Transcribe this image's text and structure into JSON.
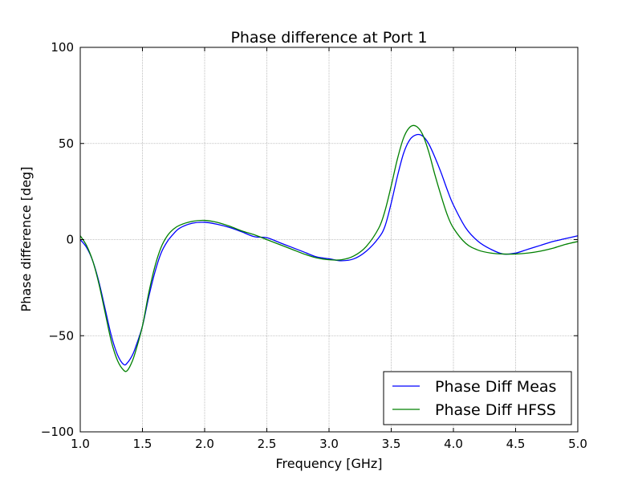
{
  "chart_data": {
    "type": "line",
    "title": "Phase difference at Port 1",
    "xlabel": "Frequency [GHz]",
    "ylabel": "Phase difference [deg]",
    "xlim": [
      1.0,
      5.0
    ],
    "ylim": [
      -100,
      100
    ],
    "xticks": [
      "1.0",
      "1.5",
      "2.0",
      "2.5",
      "3.0",
      "3.5",
      "4.0",
      "4.5",
      "5.0"
    ],
    "yticks": [
      "100",
      "50",
      "0",
      "−50",
      "−100"
    ],
    "grid": true,
    "legend": "lower-right",
    "series": [
      {
        "name": "Phase Diff Meas",
        "color": "#0000ff",
        "x": [
          1.0,
          1.05,
          1.1,
          1.15,
          1.2,
          1.25,
          1.3,
          1.35,
          1.38,
          1.42,
          1.45,
          1.5,
          1.55,
          1.6,
          1.65,
          1.7,
          1.75,
          1.8,
          1.9,
          2.0,
          2.1,
          2.2,
          2.3,
          2.4,
          2.5,
          2.6,
          2.7,
          2.8,
          2.9,
          3.0,
          3.1,
          3.2,
          3.3,
          3.4,
          3.45,
          3.5,
          3.55,
          3.6,
          3.65,
          3.7,
          3.75,
          3.8,
          3.85,
          3.9,
          3.95,
          4.0,
          4.1,
          4.2,
          4.3,
          4.4,
          4.5,
          4.6,
          4.7,
          4.8,
          4.9,
          5.0
        ],
        "y": [
          0,
          -4,
          -11,
          -22,
          -36,
          -50,
          -60,
          -65,
          -64,
          -60,
          -55,
          -45,
          -30,
          -17,
          -7,
          -1,
          3,
          6,
          8.5,
          9,
          8,
          6.3,
          4,
          1.5,
          1,
          -1.5,
          -4,
          -6.5,
          -9,
          -10,
          -11,
          -10,
          -6,
          1,
          7,
          19,
          33,
          45,
          52,
          54.5,
          54,
          50,
          43,
          35,
          26,
          18,
          6,
          -1,
          -5,
          -7.5,
          -7,
          -5,
          -3,
          -1,
          0.5,
          2
        ]
      },
      {
        "name": "Phase Diff HFSS",
        "color": "#008000",
        "x": [
          1.0,
          1.05,
          1.1,
          1.15,
          1.2,
          1.25,
          1.3,
          1.35,
          1.38,
          1.42,
          1.45,
          1.5,
          1.55,
          1.6,
          1.65,
          1.7,
          1.75,
          1.8,
          1.9,
          2.0,
          2.1,
          2.2,
          2.3,
          2.4,
          2.5,
          2.6,
          2.7,
          2.8,
          2.9,
          3.0,
          3.1,
          3.2,
          3.3,
          3.4,
          3.45,
          3.5,
          3.55,
          3.6,
          3.65,
          3.7,
          3.75,
          3.8,
          3.85,
          3.9,
          3.95,
          4.0,
          4.1,
          4.2,
          4.3,
          4.4,
          4.5,
          4.6,
          4.7,
          4.8,
          4.9,
          5.0
        ],
        "y": [
          2,
          -3,
          -11,
          -23,
          -38,
          -53,
          -63,
          -68,
          -68,
          -63,
          -57,
          -45,
          -28,
          -14,
          -4,
          2,
          5.5,
          7.5,
          9.5,
          10,
          9,
          7,
          4.5,
          2.5,
          0,
          -2.5,
          -5,
          -7.5,
          -9.5,
          -10.5,
          -10.5,
          -8.5,
          -3.5,
          6,
          15,
          28,
          42,
          53,
          58.5,
          59,
          55,
          46,
          34,
          23,
          13,
          6,
          -2,
          -5.5,
          -7,
          -7.5,
          -7.5,
          -7,
          -6,
          -4.5,
          -2.5,
          -1
        ]
      }
    ]
  }
}
